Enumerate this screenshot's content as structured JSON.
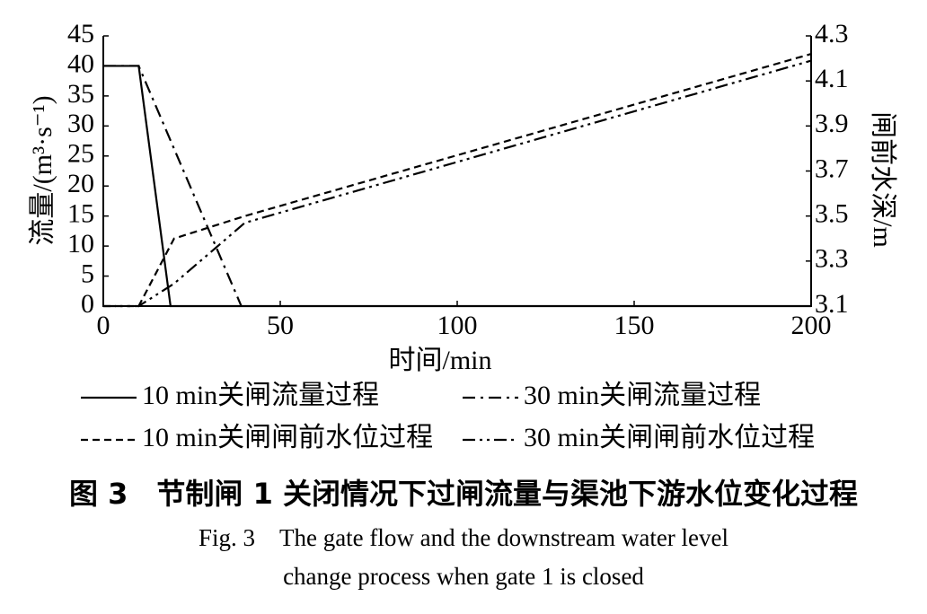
{
  "chart_data": {
    "type": "line",
    "xlabel": "时间/min",
    "ylabel": "流量/(m³·s⁻¹)",
    "y2label": "闸前水深/m",
    "xlim": [
      0,
      200
    ],
    "xticks": [
      0,
      50,
      100,
      150,
      200
    ],
    "ylim": [
      0,
      45
    ],
    "yticks": [
      0,
      5,
      10,
      15,
      20,
      25,
      30,
      35,
      40,
      45
    ],
    "y2lim": [
      3.1,
      4.3
    ],
    "y2ticks": [
      3.1,
      3.3,
      3.5,
      3.7,
      3.9,
      4.1,
      4.3
    ],
    "series": [
      {
        "name": "10 min关闸流量过程",
        "color": "#000000",
        "line_style": "solid",
        "x": [
          0,
          10,
          19,
          200
        ],
        "values": [
          40,
          40,
          0,
          0
        ]
      },
      {
        "name": "30 min关闸流量过程",
        "color": "#000000",
        "line_style": "dashdot",
        "x": [
          0,
          10,
          39
        ],
        "values": [
          40,
          40,
          0
        ]
      },
      {
        "name": "10 min关闸闸前水位过程",
        "color": "#000000",
        "line_style": "dashed",
        "axis": "y2",
        "x": [
          0,
          10,
          20,
          40,
          200
        ],
        "values": [
          3.1,
          3.1,
          3.4,
          3.5,
          4.22
        ]
      },
      {
        "name": "30 min关闸闸前水位过程",
        "color": "#000000",
        "line_style": "dashdotdot",
        "axis": "y2",
        "x": [
          0,
          10,
          20,
          40,
          200
        ],
        "values": [
          3.1,
          3.1,
          3.2,
          3.47,
          4.19
        ]
      }
    ]
  },
  "caption": {
    "title": "图 3　节制闸 1 关闭情况下过闸流量与渠池下游水位变化过程",
    "english_line1": "Fig. 3　The gate flow and the downstream water level",
    "english_line2": "change process when gate 1 is closed"
  }
}
